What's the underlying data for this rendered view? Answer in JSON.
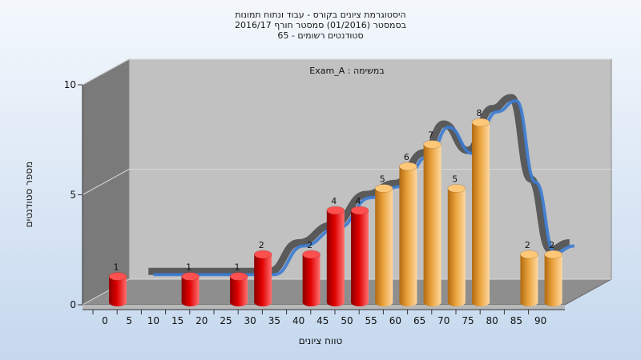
{
  "chart_data": {
    "type": "bar",
    "title_lines": [
      "היסטוגרמת ציונים בקורס - עבוד ונתוח תמונות",
      "בסמסטר  (01/2016)  סמסטר חורף 2016/17",
      "סטודנטים רשומים - 65"
    ],
    "annotation": "במשימה : Exam_A",
    "xlabel": "טווח ציונים",
    "ylabel": "מספר סטודנטים",
    "ylim": [
      0,
      10
    ],
    "yticks": [
      0,
      5,
      10
    ],
    "x_ticks": [
      "0",
      "5",
      "10",
      "15",
      "20",
      "25",
      "30",
      "35",
      "40",
      "45",
      "50",
      "55",
      "60",
      "65",
      "70",
      "75",
      "80",
      "85",
      "90"
    ],
    "bars": [
      {
        "x": 0,
        "value": 1,
        "group": "fail"
      },
      {
        "x": 15,
        "value": 1,
        "group": "fail"
      },
      {
        "x": 25,
        "value": 1,
        "group": "fail"
      },
      {
        "x": 30,
        "value": 2,
        "group": "fail"
      },
      {
        "x": 40,
        "value": 2,
        "group": "fail"
      },
      {
        "x": 45,
        "value": 4,
        "group": "fail"
      },
      {
        "x": 50,
        "value": 4,
        "group": "fail"
      },
      {
        "x": 55,
        "value": 5,
        "group": "pass"
      },
      {
        "x": 60,
        "value": 6,
        "group": "pass"
      },
      {
        "x": 65,
        "value": 7,
        "group": "pass"
      },
      {
        "x": 70,
        "value": 5,
        "group": "pass"
      },
      {
        "x": 75,
        "value": 8,
        "group": "pass"
      },
      {
        "x": 85,
        "value": 2,
        "group": "pass"
      },
      {
        "x": 90,
        "value": 2,
        "group": "pass"
      }
    ],
    "curve": [
      {
        "x": 7,
        "value": 1.3
      },
      {
        "x": 32,
        "value": 1.3
      },
      {
        "x": 38,
        "value": 2.6
      },
      {
        "x": 45,
        "value": 3.4
      },
      {
        "x": 52,
        "value": 4.8
      },
      {
        "x": 58,
        "value": 5.3
      },
      {
        "x": 64,
        "value": 6.7
      },
      {
        "x": 68,
        "value": 8.0
      },
      {
        "x": 73,
        "value": 6.8
      },
      {
        "x": 78,
        "value": 8.7
      },
      {
        "x": 82,
        "value": 9.2
      },
      {
        "x": 86,
        "value": 5.5
      },
      {
        "x": 90,
        "value": 2.3
      },
      {
        "x": 94,
        "value": 2.6
      }
    ],
    "colors": {
      "fail": "#e00000",
      "pass": "#e9a23b",
      "curve_front": "#3b7bd1",
      "curve_back": "#5a5a5a",
      "back_wall": "#c1c1c1",
      "left_wall": "#7a7a7a",
      "floor": "#8e8e8e"
    }
  }
}
